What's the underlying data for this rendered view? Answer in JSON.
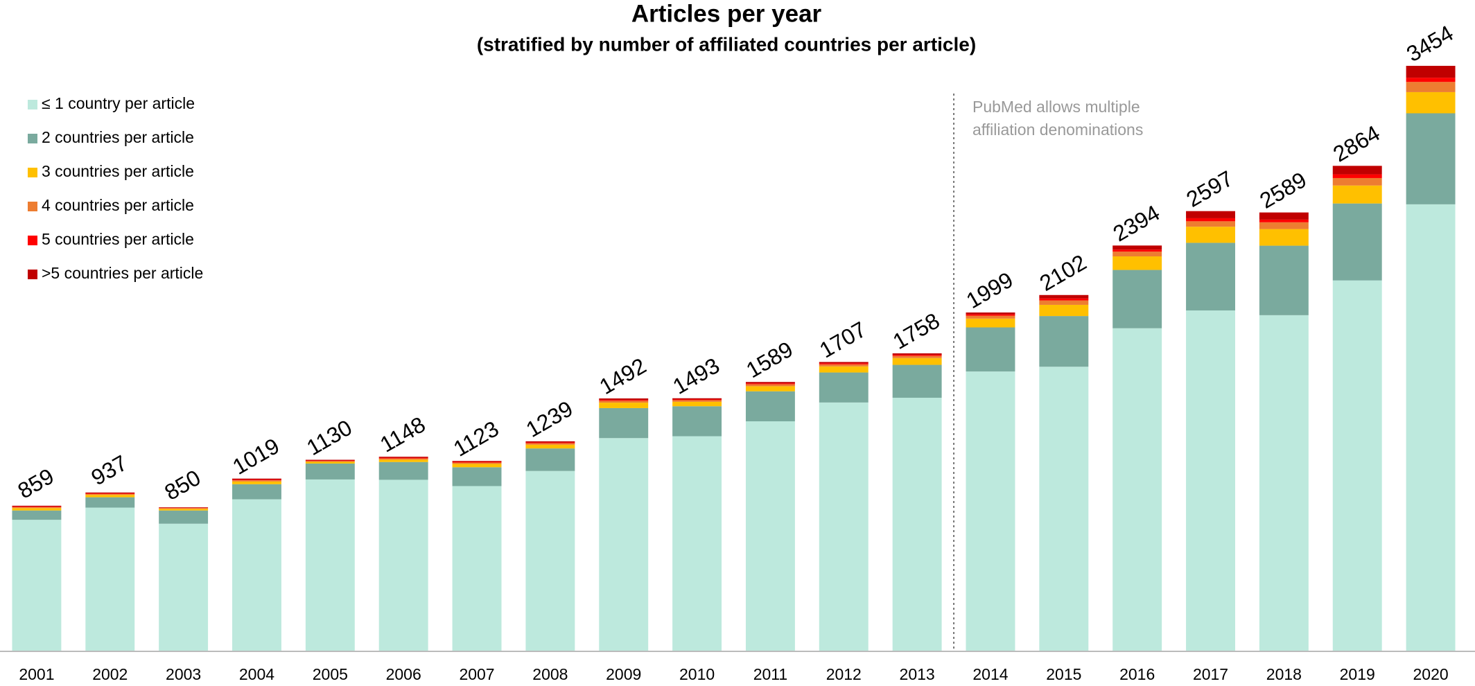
{
  "chart_data": {
    "type": "stacked_bar",
    "title": "Articles per year",
    "subtitle": "(stratified by number of affiliated countries per article)",
    "annotation": [
      "PubMed allows multiple",
      "affiliation denominations"
    ],
    "categories": [
      "2001",
      "2002",
      "2003",
      "2004",
      "2005",
      "2006",
      "2007",
      "2008",
      "2009",
      "2010",
      "2011",
      "2012",
      "2013",
      "2014",
      "2015",
      "2016",
      "2017",
      "2018",
      "2019",
      "2020"
    ],
    "series": [
      {
        "name": "≤ 1 country per article",
        "color": "#bde9dd",
        "values": [
          776,
          848,
          753,
          897,
          1014,
          1012,
          975,
          1064,
          1258,
          1269,
          1357,
          1468,
          1496,
          1651,
          1679,
          1906,
          2011,
          1983,
          2188,
          2637
        ]
      },
      {
        "name": "2 countries per article",
        "color": "#7aaa9e",
        "values": [
          55,
          61,
          78,
          89,
          94,
          105,
          111,
          133,
          177,
          177,
          177,
          177,
          194,
          260,
          299,
          344,
          399,
          410,
          454,
          537
        ]
      },
      {
        "name": "3 countries per article",
        "color": "#ffc000",
        "values": [
          14,
          14,
          10,
          16,
          10,
          14,
          20,
          22,
          32,
          26,
          30,
          36,
          40,
          52,
          66,
          80,
          95,
          98,
          106,
          125
        ]
      },
      {
        "name": "4 countries per article",
        "color": "#ed7d31",
        "values": [
          6,
          6,
          4,
          7,
          5,
          7,
          8,
          9,
          11,
          10,
          12,
          12,
          13,
          17,
          26,
          28,
          32,
          40,
          44,
          60
        ]
      },
      {
        "name": "5 countries per article",
        "color": "#ff0000",
        "values": [
          3,
          3,
          2,
          4,
          3,
          4,
          4,
          4,
          5,
          4,
          5,
          6,
          6,
          8,
          12,
          12,
          18,
          16,
          22,
          25
        ]
      },
      {
        "name": ">5 countries per article",
        "color": "#c00000",
        "values": [
          5,
          5,
          3,
          6,
          4,
          6,
          5,
          7,
          9,
          7,
          8,
          8,
          9,
          11,
          20,
          24,
          42,
          42,
          50,
          70
        ]
      }
    ],
    "totals": [
      859,
      937,
      850,
      1019,
      1130,
      1148,
      1123,
      1239,
      1492,
      1493,
      1589,
      1707,
      1758,
      1999,
      2102,
      2394,
      2597,
      2589,
      2864,
      3454
    ],
    "divider_after": "2013"
  }
}
